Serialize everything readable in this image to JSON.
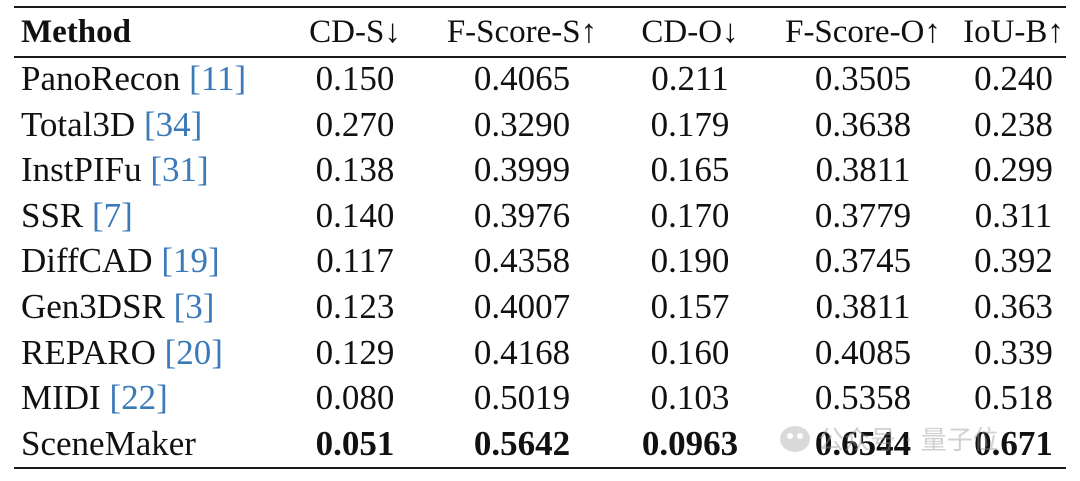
{
  "table": {
    "headers": [
      {
        "label": "Method"
      },
      {
        "label": "CD-S↓"
      },
      {
        "label": "F-Score-S↑"
      },
      {
        "label": "CD-O↓"
      },
      {
        "label": "F-Score-O↑"
      },
      {
        "label": "IoU-B↑"
      }
    ],
    "rows": [
      {
        "method": "PanoRecon",
        "cite": "[11]",
        "values": [
          "0.150",
          "0.4065",
          "0.211",
          "0.3505",
          "0.240"
        ]
      },
      {
        "method": "Total3D",
        "cite": "[34]",
        "values": [
          "0.270",
          "0.3290",
          "0.179",
          "0.3638",
          "0.238"
        ]
      },
      {
        "method": "InstPIFu",
        "cite": "[31]",
        "values": [
          "0.138",
          "0.3999",
          "0.165",
          "0.3811",
          "0.299"
        ]
      },
      {
        "method": "SSR",
        "cite": "[7]",
        "values": [
          "0.140",
          "0.3976",
          "0.170",
          "0.3779",
          "0.311"
        ]
      },
      {
        "method": "DiffCAD",
        "cite": "[19]",
        "values": [
          "0.117",
          "0.4358",
          "0.190",
          "0.3745",
          "0.392"
        ]
      },
      {
        "method": "Gen3DSR",
        "cite": "[3]",
        "values": [
          "0.123",
          "0.4007",
          "0.157",
          "0.3811",
          "0.363"
        ]
      },
      {
        "method": "REPARO",
        "cite": "[20]",
        "values": [
          "0.129",
          "0.4168",
          "0.160",
          "0.4085",
          "0.339"
        ]
      },
      {
        "method": "MIDI",
        "cite": "[22]",
        "values": [
          "0.080",
          "0.5019",
          "0.103",
          "0.5358",
          "0.518"
        ]
      },
      {
        "method": "SceneMaker",
        "cite": "",
        "values": [
          "0.051",
          "0.5642",
          "0.0963",
          "0.6544",
          "0.671"
        ],
        "best": true
      }
    ]
  },
  "watermark": {
    "text": "公众号 · 量子位"
  },
  "colors": {
    "citation": "#3b7ab8",
    "text": "#111111",
    "rule": "#1a1a1a"
  }
}
